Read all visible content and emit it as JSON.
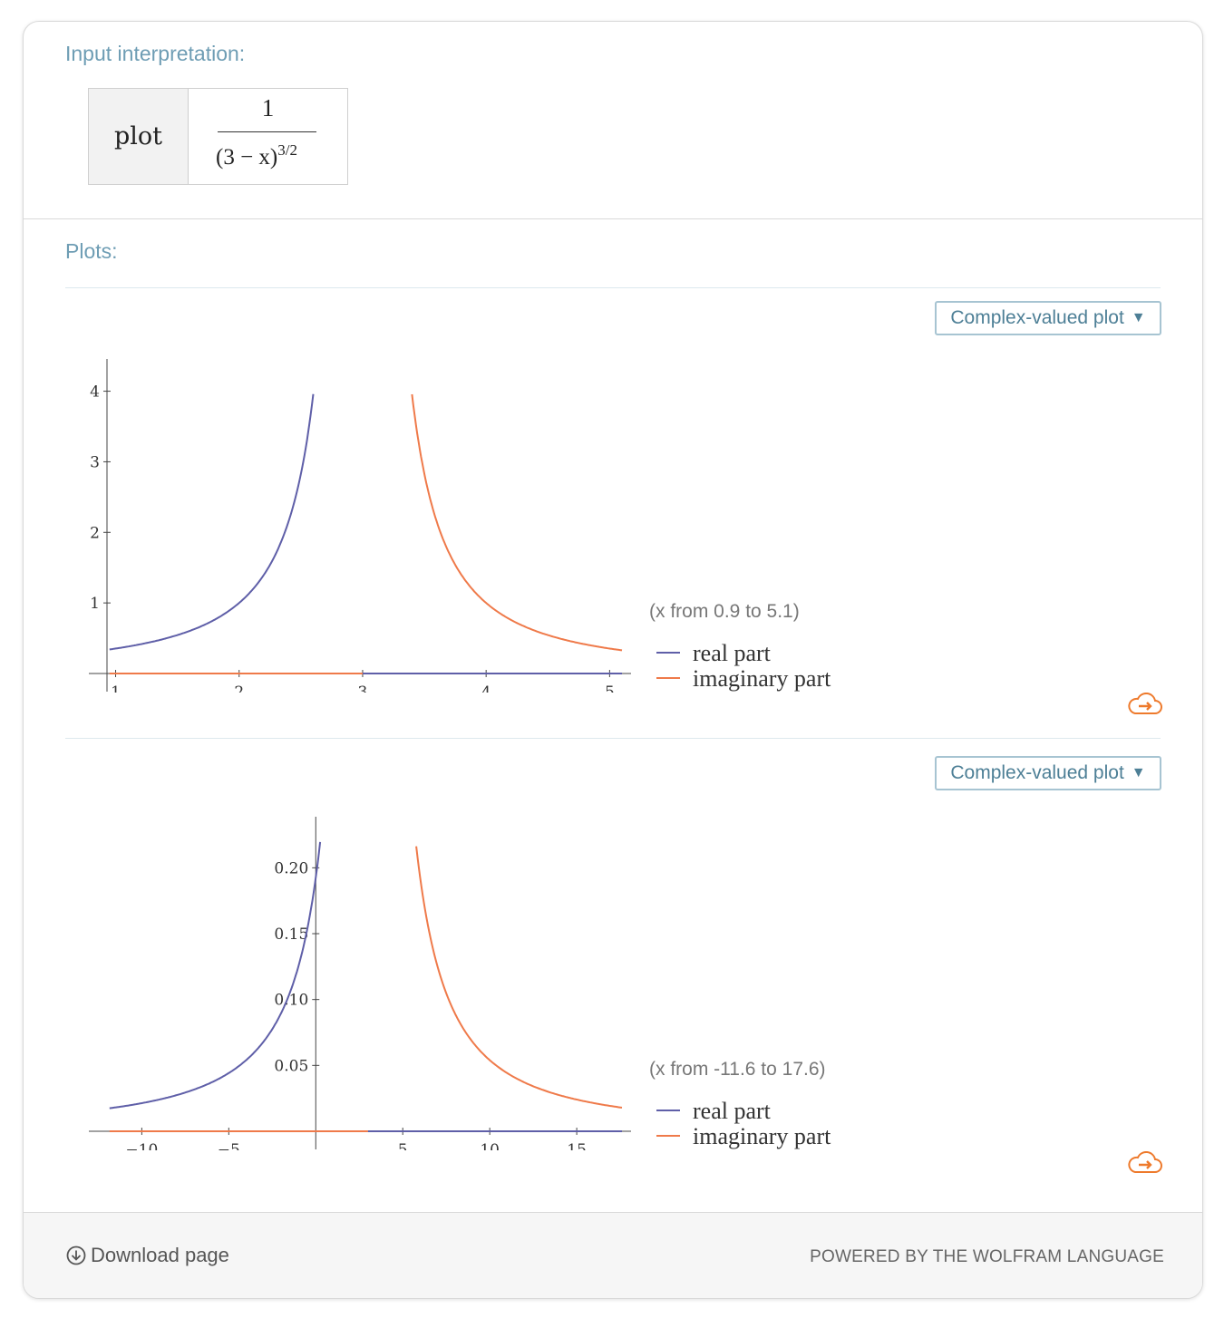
{
  "pods": {
    "input": {
      "title": "Input interpretation:",
      "key": "plot",
      "numerator": "1",
      "denominator": "(3 − x)",
      "exponent": "3/2"
    },
    "plots": {
      "title": "Plots:",
      "dropdown_label": "Complex-valued plot",
      "dropdown_caret": "▼"
    }
  },
  "footer": {
    "download_label": "Download page",
    "powered_label": "POWERED BY THE WOLFRAM LANGUAGE"
  },
  "colors": {
    "real": "#5f5fa8",
    "imaginary": "#ef7a4a",
    "accent": "#6e9db4",
    "cloud": "#ee7a2c"
  },
  "chart_data": [
    {
      "type": "line",
      "function": "1/(3 - x)^(3/2)",
      "range_label": "(x from 0.9 to 5.1)",
      "xlim": [
        0.93,
        5.1
      ],
      "ylim": [
        0,
        4.2
      ],
      "x_ticks": [
        1,
        2,
        3,
        4,
        5
      ],
      "y_ticks": [
        1,
        2,
        3,
        4
      ],
      "x_tick_labels": [
        "1",
        "2",
        "3",
        "4",
        "5"
      ],
      "y_tick_labels": [
        "1",
        "2",
        "3",
        "4"
      ],
      "series": [
        {
          "name": "real part",
          "points": [
            [
              0.95,
              0.34
            ],
            [
              1.5,
              0.54
            ],
            [
              2.0,
              1.0
            ],
            [
              2.3,
              1.71
            ],
            [
              2.5,
              2.83
            ],
            [
              2.62,
              4.0
            ],
            [
              3.0,
              0
            ],
            [
              5.1,
              0
            ]
          ]
        },
        {
          "name": "imaginary part",
          "points": [
            [
              0.95,
              0
            ],
            [
              3.0,
              0
            ],
            [
              3.38,
              4.0
            ],
            [
              3.5,
              2.83
            ],
            [
              4.0,
              1.0
            ],
            [
              4.5,
              0.54
            ],
            [
              5.1,
              0.33
            ]
          ]
        }
      ],
      "legend": [
        "real part",
        "imaginary part"
      ]
    },
    {
      "type": "line",
      "function": "1/(3 - x)^(3/2)",
      "range_label": "(x from -11.6 to 17.6)",
      "xlim": [
        -12,
        17.6
      ],
      "ylim": [
        0,
        0.225
      ],
      "x_ticks": [
        -10,
        -5,
        5,
        10,
        15
      ],
      "y_ticks": [
        0.05,
        0.1,
        0.15,
        0.2
      ],
      "x_tick_labels": [
        "−10",
        "−5",
        "5",
        "10",
        "15"
      ],
      "y_tick_labels": [
        "0.05",
        "0.10",
        "0.15",
        "0.20"
      ],
      "series": [
        {
          "name": "real part",
          "points": [
            [
              -11.6,
              0.0177
            ],
            [
              -5,
              0.0442
            ],
            [
              0,
              0.19
            ],
            [
              0.3,
              0.22
            ],
            [
              3,
              0
            ],
            [
              17.6,
              0
            ]
          ]
        },
        {
          "name": "imaginary part",
          "points": [
            [
              -11.6,
              0
            ],
            [
              3,
              0
            ],
            [
              5.7,
              0.22
            ],
            [
              10,
              0.054
            ],
            [
              17.6,
              0.0177
            ]
          ]
        }
      ],
      "legend": [
        "real part",
        "imaginary part"
      ]
    }
  ]
}
